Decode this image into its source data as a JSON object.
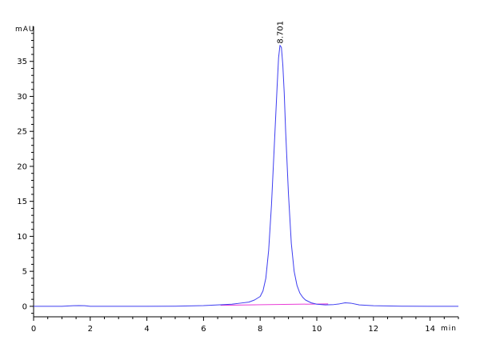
{
  "chart_data": {
    "type": "line",
    "title": "",
    "ylabel": "mAU",
    "xlabel": "min",
    "xlim": [
      0,
      15
    ],
    "ylim": [
      -1.5,
      40
    ],
    "xticks": [
      0,
      2,
      4,
      6,
      8,
      10,
      12,
      14
    ],
    "yticks": [
      0,
      5,
      10,
      15,
      20,
      25,
      30,
      35
    ],
    "grid": false,
    "series": [
      {
        "color": "#3d3df0",
        "x": [
          0.0,
          1.0,
          1.4,
          1.6,
          1.8,
          2.0,
          3.0,
          4.0,
          5.0,
          5.5,
          6.0,
          6.5,
          7.0,
          7.3,
          7.6,
          7.8,
          8.0,
          8.1,
          8.2,
          8.3,
          8.4,
          8.5,
          8.6,
          8.65,
          8.7,
          8.75,
          8.8,
          8.85,
          8.9,
          9.0,
          9.1,
          9.2,
          9.3,
          9.4,
          9.5,
          9.6,
          9.8,
          10.0,
          10.3,
          10.6,
          10.8,
          11.0,
          11.2,
          11.5,
          12.0,
          13.0,
          14.0,
          15.0
        ],
        "y": [
          0.0,
          0.0,
          0.08,
          0.1,
          0.08,
          0.0,
          0.0,
          0.0,
          0.02,
          0.06,
          0.1,
          0.2,
          0.3,
          0.45,
          0.6,
          0.9,
          1.4,
          2.2,
          4.0,
          8.0,
          14.5,
          23.0,
          31.5,
          35.5,
          37.3,
          37.0,
          34.5,
          30.5,
          25.0,
          16.0,
          9.0,
          5.0,
          3.0,
          1.9,
          1.3,
          0.9,
          0.5,
          0.3,
          0.2,
          0.25,
          0.35,
          0.5,
          0.45,
          0.2,
          0.08,
          0.02,
          0.0,
          0.0
        ]
      },
      {
        "color": "#e83ad6",
        "x": [
          6.6,
          10.4
        ],
        "y": [
          0.15,
          0.35
        ]
      }
    ],
    "annotations": [
      {
        "text": "8.701",
        "x": 8.7,
        "y": 37.3
      }
    ]
  }
}
